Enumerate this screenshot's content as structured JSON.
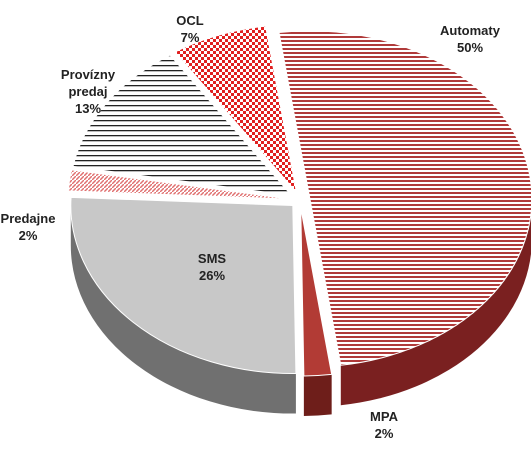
{
  "chart_data": {
    "type": "pie",
    "categories": [
      "Automaty",
      "MPA",
      "SMS",
      "Predajne",
      "Provízny predaj",
      "OCL"
    ],
    "values": [
      50,
      2,
      26,
      2,
      13,
      7
    ],
    "value_labels": [
      "50%",
      "2%",
      "26%",
      "2%",
      "13%",
      "7%"
    ],
    "colors": [
      "#b03a3a",
      "#b23b35",
      "#c8c8c8",
      "#e07070",
      "#222222",
      "#e02020"
    ]
  }
}
